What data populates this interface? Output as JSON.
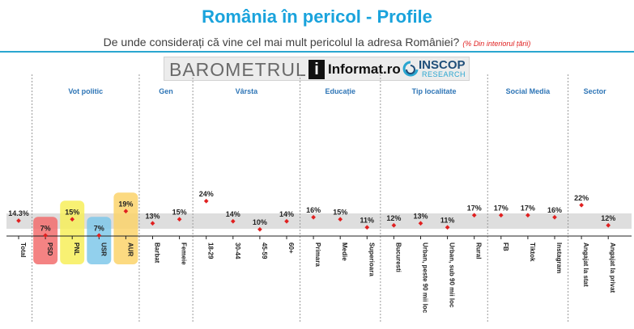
{
  "header": {
    "title": "România în pericol - Profile",
    "subtitle": "De unde considerați că vine cel mai mult pericolul la adresa României?",
    "subtitle_note": "(% Din interiorul țării)"
  },
  "logos": {
    "barometrul": "BAROMETRUL",
    "informat_mark": "i",
    "informat": "Informat.ro",
    "inscop": "INSCOP",
    "inscop_sub": "RESEARCH"
  },
  "colors": {
    "accent": "#1aa3dc",
    "group_label": "#2e75b6",
    "marker": "#e02020",
    "band": "#dedede",
    "PSD": "#f26d6d",
    "PNL": "#f7ef5b",
    "USR": "#7fc8ea",
    "AUR": "#fbd36b"
  },
  "chart_data": {
    "type": "scatter",
    "title": "România în pericol - Profile",
    "average": 14.3,
    "groups": [
      {
        "name": "",
        "categories": [
          "Total"
        ],
        "labels": [
          "14.3%"
        ],
        "values": [
          14.3
        ]
      },
      {
        "name": "Vot politic",
        "categories": [
          "PSD",
          "PNL",
          "USR",
          "AUR"
        ],
        "labels": [
          "7%",
          "15%",
          "7%",
          "19%"
        ],
        "values": [
          7,
          15,
          7,
          19
        ],
        "highlight_colors": [
          "#f26d6d",
          "#f7ef5b",
          "#7fc8ea",
          "#fbd36b"
        ]
      },
      {
        "name": "Gen",
        "categories": [
          "Barbat",
          "Femeie"
        ],
        "labels": [
          "13%",
          "15%"
        ],
        "values": [
          13,
          15
        ]
      },
      {
        "name": "Vârsta",
        "categories": [
          "18-29",
          "30-44",
          "45-59",
          "60+"
        ],
        "labels": [
          "24%",
          "14%",
          "10%",
          "14%"
        ],
        "values": [
          24,
          14,
          10,
          14
        ]
      },
      {
        "name": "Educație",
        "categories": [
          "Primara",
          "Medie",
          "Superioara"
        ],
        "labels": [
          "16%",
          "15%",
          "11%"
        ],
        "values": [
          16,
          15,
          11
        ]
      },
      {
        "name": "Tip localitate",
        "categories": [
          "Bucuresti",
          "Urban, peste 90 mii loc",
          "Urban, sub 90 mii loc",
          "Rural"
        ],
        "labels": [
          "12%",
          "13%",
          "11%",
          "17%"
        ],
        "values": [
          12,
          13,
          11,
          17
        ]
      },
      {
        "name": "Social Media",
        "categories": [
          "FB",
          "Tiktok",
          "Instagram"
        ],
        "labels": [
          "17%",
          "17%",
          "16%"
        ],
        "values": [
          17,
          17,
          16
        ]
      },
      {
        "name": "Sector",
        "categories": [
          "Angajat la stat",
          "Angajat la privat"
        ],
        "labels": [
          "22%",
          "12%"
        ],
        "values": [
          22,
          12
        ]
      }
    ]
  }
}
